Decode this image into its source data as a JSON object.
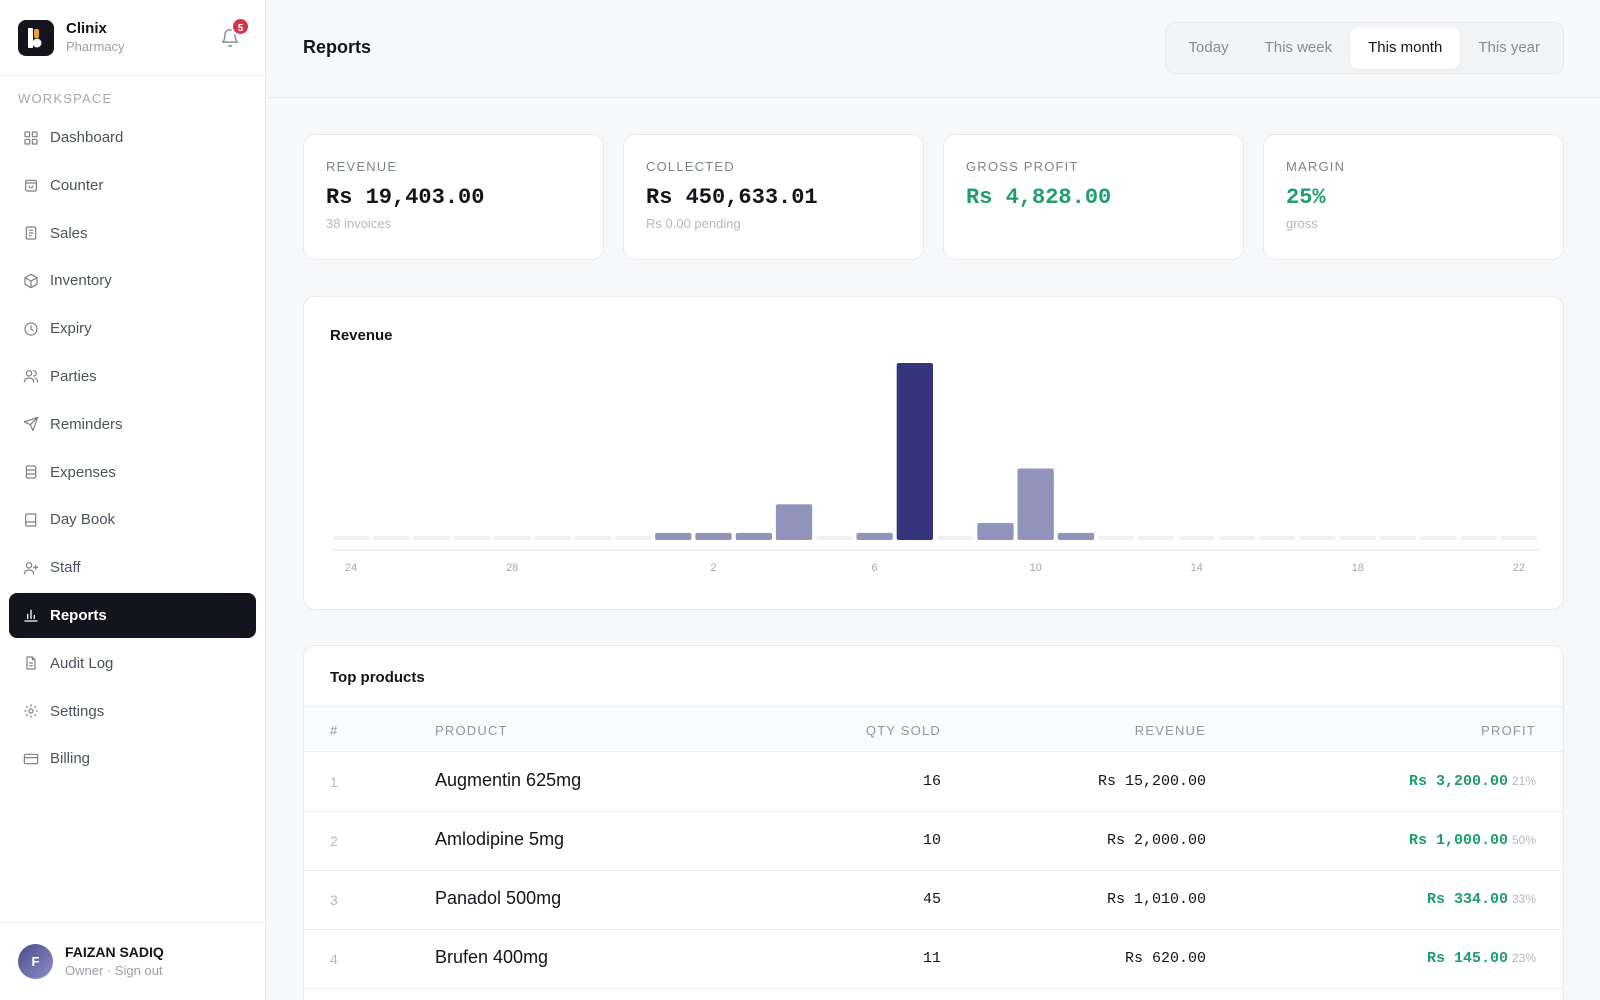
{
  "brand": {
    "name": "Clinix",
    "subtitle": "Pharmacy",
    "notification_count": "5"
  },
  "sidebar": {
    "section_label": "WORKSPACE",
    "items": [
      {
        "label": "Dashboard",
        "icon": "grid-icon",
        "active": false
      },
      {
        "label": "Counter",
        "icon": "shopping-bag-icon",
        "active": false
      },
      {
        "label": "Sales",
        "icon": "receipt-icon",
        "active": false
      },
      {
        "label": "Inventory",
        "icon": "box-icon",
        "active": false
      },
      {
        "label": "Expiry",
        "icon": "clock-icon",
        "active": false
      },
      {
        "label": "Parties",
        "icon": "users-icon",
        "active": false
      },
      {
        "label": "Reminders",
        "icon": "send-icon",
        "active": false
      },
      {
        "label": "Expenses",
        "icon": "database-icon",
        "active": false
      },
      {
        "label": "Day Book",
        "icon": "book-icon",
        "active": false
      },
      {
        "label": "Staff",
        "icon": "user-plus-icon",
        "active": false
      },
      {
        "label": "Reports",
        "icon": "bar-chart-icon",
        "active": true
      },
      {
        "label": "Audit Log",
        "icon": "file-text-icon",
        "active": false
      },
      {
        "label": "Settings",
        "icon": "gear-icon",
        "active": false
      },
      {
        "label": "Billing",
        "icon": "credit-card-icon",
        "active": false
      }
    ]
  },
  "user": {
    "initial": "F",
    "name": "FAIZAN SADIQ",
    "role": "Owner · Sign out"
  },
  "header": {
    "title": "Reports",
    "ranges": [
      {
        "label": "Today",
        "active": false
      },
      {
        "label": "This week",
        "active": false
      },
      {
        "label": "This month",
        "active": true
      },
      {
        "label": "This year",
        "active": false
      }
    ]
  },
  "stats": [
    {
      "label": "REVENUE",
      "value": "Rs 19,403.00",
      "sub": "38 invoices",
      "accent": false
    },
    {
      "label": "COLLECTED",
      "value": "Rs 450,633.01",
      "sub": "Rs 0.00 pending",
      "accent": false
    },
    {
      "label": "GROSS PROFIT",
      "value": "Rs 4,828.00",
      "sub": "",
      "accent": true
    },
    {
      "label": "MARGIN",
      "value": "25%",
      "sub": "gross",
      "accent": true
    }
  ],
  "chart_data": {
    "type": "bar",
    "title": "Revenue",
    "categories": [
      "24",
      "25",
      "26",
      "27",
      "28",
      "29",
      "30",
      "31",
      "1",
      "2",
      "3",
      "4",
      "5",
      "6",
      "7",
      "8",
      "9",
      "10",
      "11",
      "12",
      "13",
      "14",
      "15",
      "16",
      "17",
      "18",
      "19",
      "20",
      "21",
      "22"
    ],
    "tick_labels": [
      "24",
      "28",
      "2",
      "6",
      "10",
      "14",
      "18",
      "22"
    ],
    "values": [
      0,
      0,
      0,
      0,
      0,
      0,
      0,
      0,
      210,
      210,
      210,
      1050,
      0,
      210,
      5200,
      0,
      500,
      2100,
      210,
      0,
      0,
      0,
      0,
      0,
      0,
      0,
      0,
      0,
      0,
      0
    ],
    "highlight_index": 14,
    "ylim": [
      0,
      5200
    ],
    "grid": false,
    "colors": {
      "bar": "#9293bb",
      "highlight": "#34357a",
      "empty": "#eef0f2"
    }
  },
  "top_products": {
    "title": "Top products",
    "columns": {
      "idx": "#",
      "product": "PRODUCT",
      "qty": "QTY SOLD",
      "revenue": "REVENUE",
      "profit": "PROFIT"
    },
    "rows": [
      {
        "idx": "1",
        "product": "Augmentin 625mg",
        "qty": "16",
        "revenue": "Rs 15,200.00",
        "profit": "Rs 3,200.00",
        "margin": "21%"
      },
      {
        "idx": "2",
        "product": "Amlodipine 5mg",
        "qty": "10",
        "revenue": "Rs 2,000.00",
        "profit": "Rs 1,000.00",
        "margin": "50%"
      },
      {
        "idx": "3",
        "product": "Panadol 500mg",
        "qty": "45",
        "revenue": "Rs 1,010.00",
        "profit": "Rs 334.00",
        "margin": "33%"
      },
      {
        "idx": "4",
        "product": "Brufen 400mg",
        "qty": "11",
        "revenue": "Rs 620.00",
        "profit": "Rs 145.00",
        "margin": "23%"
      }
    ]
  }
}
